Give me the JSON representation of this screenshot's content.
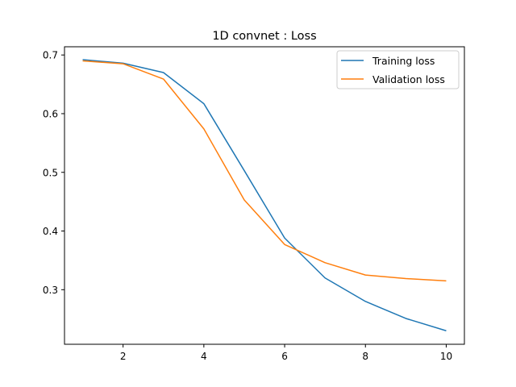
{
  "chart_data": {
    "type": "line",
    "title": "1D convnet : Loss",
    "xlabel": "",
    "ylabel": "",
    "x": [
      1,
      2,
      3,
      4,
      5,
      6,
      7,
      8,
      9,
      10
    ],
    "xlim": [
      0.55,
      10.45
    ],
    "ylim": [
      0.207,
      0.714
    ],
    "xticks": [
      2,
      4,
      6,
      8,
      10
    ],
    "yticks": [
      0.3,
      0.4,
      0.5,
      0.6,
      0.7
    ],
    "xtick_labels": [
      "2",
      "4",
      "6",
      "8",
      "10"
    ],
    "ytick_labels": [
      "0.3",
      "0.4",
      "0.5",
      "0.6",
      "0.7"
    ],
    "grid": false,
    "legend_position": "top-right",
    "series": [
      {
        "name": "Training loss",
        "color": "#1f77b4",
        "values": [
          0.692,
          0.686,
          0.67,
          0.617,
          0.503,
          0.388,
          0.32,
          0.28,
          0.251,
          0.23
        ]
      },
      {
        "name": "Validation loss",
        "color": "#ff7f0e",
        "values": [
          0.69,
          0.685,
          0.659,
          0.574,
          0.453,
          0.377,
          0.346,
          0.325,
          0.319,
          0.315
        ]
      }
    ]
  }
}
